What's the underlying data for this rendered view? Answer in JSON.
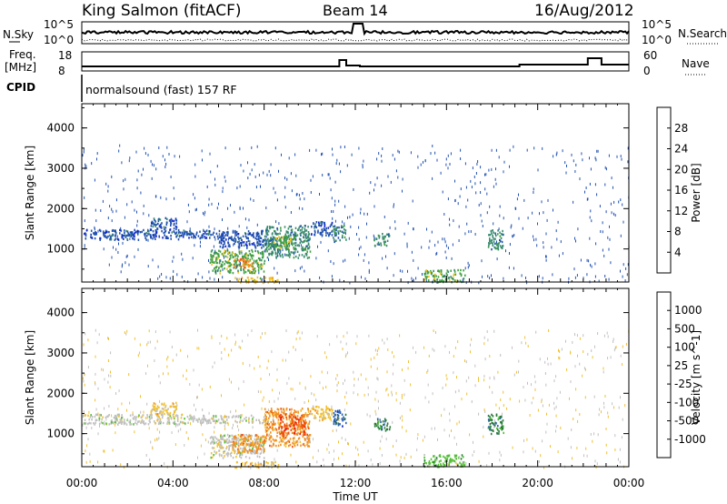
{
  "header": {
    "station": "King Salmon (fitACF)",
    "beam": "Beam 14",
    "date": "16/Aug/2012"
  },
  "aux_panels": {
    "nsky": {
      "label": "N.Sky",
      "ticks": [
        "10^5",
        "10^0"
      ],
      "right_label": "N.Search",
      "right_ticks": [
        "10^5",
        "10^0"
      ]
    },
    "freq": {
      "label_line1": "Freq.",
      "label_line2": "[MHz]",
      "ticks": [
        "18",
        "8"
      ],
      "right_label": "Nave",
      "right_ticks": [
        "60",
        "0"
      ]
    },
    "cpid": {
      "label": "CPID",
      "text": "normalsound (fast) 157 RF"
    }
  },
  "x_axis": {
    "label": "Time UT",
    "ticks": [
      "00:00",
      "04:00",
      "08:00",
      "12:00",
      "16:00",
      "20:00",
      "00:00"
    ]
  },
  "colors": {
    "power": [
      "#1020d0",
      "#2050b0",
      "#3a8a70",
      "#40a040",
      "#f0c020",
      "#f09020",
      "#f05010",
      "#e81010"
    ],
    "velocity": [
      "#1020c0",
      "#2a60b0",
      "#2a7a3a",
      "#50c030",
      "#c0c0c0",
      "#f0c030",
      "#f09020",
      "#f05010",
      "#e81010"
    ]
  },
  "chart_data": [
    {
      "type": "heatmap",
      "title": "",
      "xlabel": "Time UT",
      "ylabel": "Slant Range [km]",
      "xlim": [
        0,
        24
      ],
      "ylim": [
        180,
        4600
      ],
      "yticks": [
        1000,
        2000,
        3000,
        4000
      ],
      "colorbar": {
        "label": "Power [dB]",
        "ticks": [
          4,
          8,
          12,
          16,
          20,
          24,
          28
        ],
        "range": [
          0,
          32
        ]
      },
      "regions": [
        {
          "t0": 0.0,
          "t1": 4.6,
          "r0": 1250,
          "r1": 1500,
          "value": 5
        },
        {
          "t0": 3.0,
          "t1": 4.2,
          "r0": 1500,
          "r1": 1800,
          "value": 5
        },
        {
          "t0": 4.6,
          "t1": 8.0,
          "r0": 1280,
          "r1": 1480,
          "value": 6
        },
        {
          "t0": 6.0,
          "t1": 8.5,
          "r0": 1050,
          "r1": 1300,
          "value": 7
        },
        {
          "t0": 5.6,
          "t1": 8.0,
          "r0": 420,
          "r1": 1000,
          "value": 13
        },
        {
          "t0": 6.6,
          "t1": 7.5,
          "r0": 550,
          "r1": 780,
          "value": 22
        },
        {
          "t0": 6.7,
          "t1": 8.6,
          "r0": 180,
          "r1": 320,
          "value": 17
        },
        {
          "t0": 8.0,
          "t1": 10.0,
          "r0": 800,
          "r1": 1600,
          "value": 9
        },
        {
          "t0": 8.4,
          "t1": 9.3,
          "r0": 1000,
          "r1": 1350,
          "value": 14
        },
        {
          "t0": 10.0,
          "t1": 11.0,
          "r0": 1350,
          "r1": 1700,
          "value": 7
        },
        {
          "t0": 11.0,
          "t1": 11.6,
          "r0": 1200,
          "r1": 1600,
          "value": 11
        },
        {
          "t0": 12.8,
          "t1": 13.5,
          "r0": 1100,
          "r1": 1400,
          "value": 10
        },
        {
          "t0": 15.0,
          "t1": 16.8,
          "r0": 200,
          "r1": 500,
          "value": 13
        },
        {
          "t0": 17.8,
          "t1": 18.5,
          "r0": 1000,
          "r1": 1500,
          "value": 9
        }
      ]
    },
    {
      "type": "heatmap",
      "title": "",
      "xlabel": "Time UT",
      "ylabel": "Slant Range [km]",
      "xlim": [
        0,
        24
      ],
      "ylim": [
        180,
        4600
      ],
      "yticks": [
        1000,
        2000,
        3000,
        4000
      ],
      "colorbar": {
        "label": "Velocity [m s^-1]",
        "ticks": [
          "1000",
          "500",
          "100",
          "25",
          "-25",
          "-100",
          "-500",
          "-1000"
        ]
      },
      "regions": [
        {
          "t0": 0.0,
          "t1": 4.6,
          "r0": 1250,
          "r1": 1500,
          "value": 4
        },
        {
          "t0": 3.0,
          "t1": 4.2,
          "r0": 1500,
          "r1": 1800,
          "value": 5
        },
        {
          "t0": 4.6,
          "t1": 8.0,
          "r0": 1280,
          "r1": 1480,
          "value": 4
        },
        {
          "t0": 5.6,
          "t1": 8.0,
          "r0": 420,
          "r1": 1000,
          "value": 4
        },
        {
          "t0": 6.6,
          "t1": 8.0,
          "r0": 550,
          "r1": 1000,
          "value": 6
        },
        {
          "t0": 6.7,
          "t1": 8.6,
          "r0": 180,
          "r1": 320,
          "value": 5
        },
        {
          "t0": 8.0,
          "t1": 10.0,
          "r0": 700,
          "r1": 1650,
          "value": 6
        },
        {
          "t0": 8.6,
          "t1": 9.8,
          "r0": 1000,
          "r1": 1500,
          "value": 7
        },
        {
          "t0": 10.0,
          "t1": 11.0,
          "r0": 1350,
          "r1": 1700,
          "value": 5
        },
        {
          "t0": 11.0,
          "t1": 11.6,
          "r0": 1200,
          "r1": 1600,
          "value": 1
        },
        {
          "t0": 12.8,
          "t1": 13.5,
          "r0": 1100,
          "r1": 1400,
          "value": 2
        },
        {
          "t0": 15.0,
          "t1": 16.8,
          "r0": 200,
          "r1": 500,
          "value": 3
        },
        {
          "t0": 17.8,
          "t1": 18.5,
          "r0": 1000,
          "r1": 1500,
          "value": 2
        }
      ]
    }
  ]
}
